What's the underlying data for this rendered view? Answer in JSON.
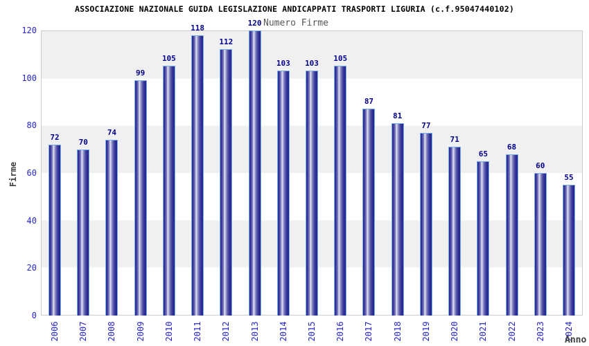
{
  "title": "ASSOCIAZIONE NAZIONALE GUIDA LEGISLAZIONE ANDICAPPATI TRASPORTI LIGURIA (c.f.95047440102)",
  "legend": {
    "label": "Numero Firme"
  },
  "axes": {
    "y_title": "Firme",
    "x_title": "Anno"
  },
  "chart_data": {
    "type": "bar",
    "title": "ASSOCIAZIONE NAZIONALE GUIDA LEGISLAZIONE ANDICAPPATI TRASPORTI LIGURIA (c.f.95047440102)",
    "categories": [
      "2006",
      "2007",
      "2008",
      "2009",
      "2010",
      "2011",
      "2012",
      "2013",
      "2014",
      "2015",
      "2016",
      "2017",
      "2018",
      "2019",
      "2020",
      "2021",
      "2022",
      "2023",
      "2024"
    ],
    "values": [
      72,
      70,
      74,
      99,
      105,
      118,
      112,
      120,
      103,
      103,
      105,
      87,
      81,
      77,
      71,
      65,
      68,
      60,
      55
    ],
    "xlabel": "Anno",
    "ylabel": "Firme",
    "ylim": [
      0,
      120
    ],
    "yticks": [
      0,
      20,
      40,
      60,
      80,
      100,
      120
    ],
    "legend_entries": [
      "Numero Firme"
    ],
    "legend_position": "top-center",
    "grid": "horizontal-bands",
    "bar_labels": "above-bar"
  },
  "colors": {
    "bar_border": "#7ab0e8",
    "bar_dark": "#23238c",
    "bar_mid": "#8a8ac6",
    "bar_highlight": "#e9e9f5",
    "tick_label": "#2626cc",
    "value_label": "#00008c",
    "band_gray": "#f0f0f0",
    "plot_border": "#cccccc",
    "title_color": "#000000",
    "legend_color": "#555555",
    "axis_title_color": "#404040"
  }
}
